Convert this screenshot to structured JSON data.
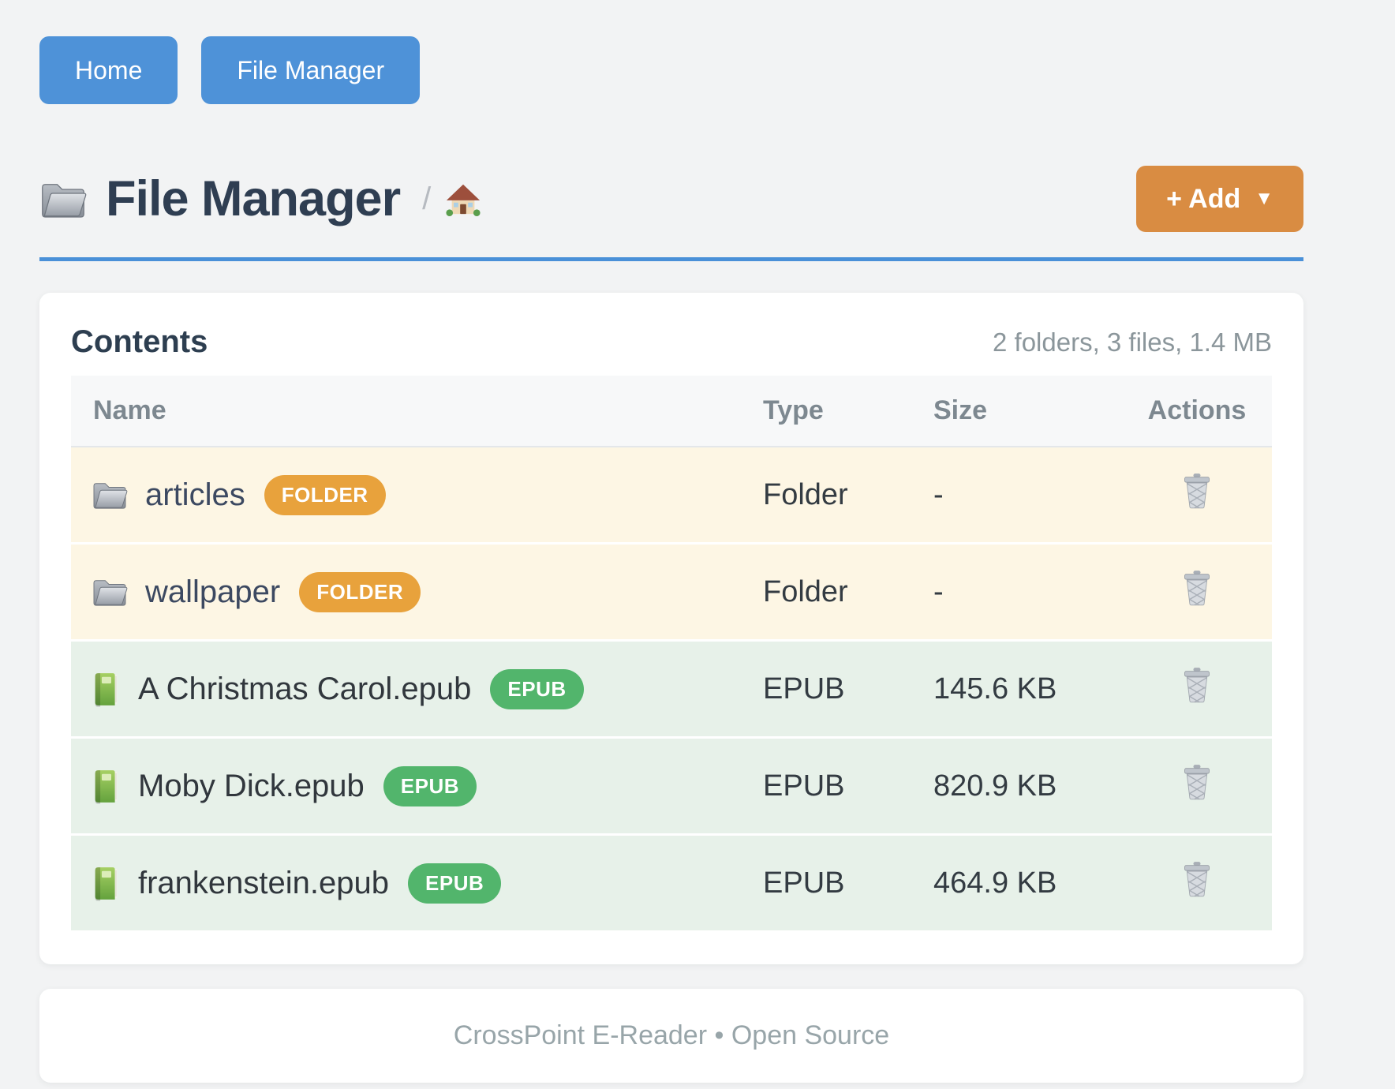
{
  "nav": {
    "buttons": [
      {
        "label": "Home"
      },
      {
        "label": "File Manager"
      }
    ]
  },
  "page_header": {
    "title": "File Manager",
    "title_icon": "folder-icon",
    "breadcrumb": {
      "separator": "/",
      "home_icon": "home-icon"
    },
    "add_button": {
      "label": "+ Add",
      "caret": "▼"
    }
  },
  "contents_card": {
    "title": "Contents",
    "summary": "2 folders, 3 files, 1.4 MB",
    "table": {
      "columns": [
        "Name",
        "Type",
        "Size",
        "Actions"
      ],
      "rows": [
        {
          "name": "articles",
          "badge": "FOLDER",
          "kind": "folder",
          "type": "Folder",
          "size": "-"
        },
        {
          "name": "wallpaper",
          "badge": "FOLDER",
          "kind": "folder",
          "type": "Folder",
          "size": "-"
        },
        {
          "name": "A Christmas Carol.epub",
          "badge": "EPUB",
          "kind": "epub",
          "type": "EPUB",
          "size": "145.6 KB"
        },
        {
          "name": "Moby Dick.epub",
          "badge": "EPUB",
          "kind": "epub",
          "type": "EPUB",
          "size": "820.9 KB"
        },
        {
          "name": "frankenstein.epub",
          "badge": "EPUB",
          "kind": "epub",
          "type": "EPUB",
          "size": "464.9 KB"
        }
      ]
    }
  },
  "footer": {
    "text": "CrossPoint E-Reader • Open Source"
  },
  "icons": {
    "row_folder": "folder-icon",
    "row_file": "book-icon",
    "delete": "trash-icon",
    "home": "home-icon",
    "add_caret": "caret-down-icon"
  },
  "colors": {
    "page_background": "#f2f3f4",
    "nav_button_blue": "#4e92d8",
    "divider_blue": "#4a90d8",
    "title_text": "#2f3e52",
    "add_button_orange": "#d98c42",
    "folder_badge_orange": "#e8a23c",
    "epub_badge_green": "#52b56c",
    "folder_row_background": "#fdf6e4",
    "file_row_background": "#e7f1e9",
    "table_header_text": "#7d8890",
    "muted_text": "#8b969b"
  }
}
